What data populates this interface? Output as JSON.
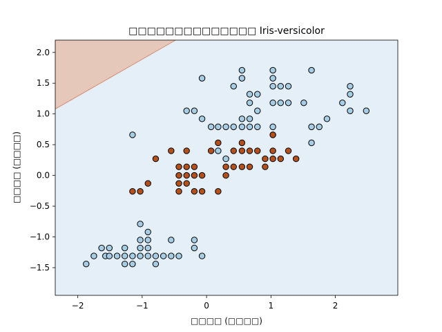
{
  "chart_data": {
    "type": "scatter",
    "title": "□□□□□□□□□□□□□□ Iris-versicolor",
    "xlabel": "□□□□ (□□□□)",
    "ylabel": "□□□□ (□□□□)",
    "xlim": [
      -2.35,
      2.97
    ],
    "ylim": [
      -1.95,
      2.2
    ],
    "xticks": [
      -2,
      -1,
      0,
      1,
      2
    ],
    "yticks": [
      -1.5,
      -1.0,
      -0.5,
      0.0,
      0.5,
      1.0,
      1.5,
      2.0
    ],
    "xtick_labels": [
      "−2",
      "−1",
      "0",
      "1",
      "2"
    ],
    "ytick_labels": [
      "−1.5",
      "−1.0",
      "−0.5",
      "0.0",
      "0.5",
      "1.0",
      "1.5",
      "2.0"
    ],
    "grid": false,
    "decision_region": {
      "boundary_line": [
        [
          -2.35,
          1.08
        ],
        [
          -0.48,
          2.2
        ]
      ],
      "upper_region_color": "#e6c8ba",
      "lower_region_color": "#e4eff7",
      "boundary_color": "#d4896e"
    },
    "series": [
      {
        "color": "#a6cde3",
        "points": [
          [
            -1.87,
            -1.44
          ],
          [
            -1.75,
            -1.31
          ],
          [
            -1.63,
            -1.18
          ],
          [
            -1.57,
            -1.31
          ],
          [
            -1.51,
            -1.18
          ],
          [
            -1.51,
            -1.31
          ],
          [
            -1.39,
            -1.31
          ],
          [
            -1.27,
            -1.44
          ],
          [
            -1.27,
            -1.31
          ],
          [
            -1.27,
            -1.18
          ],
          [
            -1.15,
            -1.44
          ],
          [
            -1.15,
            -1.31
          ],
          [
            -1.03,
            -1.31
          ],
          [
            -1.03,
            -1.18
          ],
          [
            -1.03,
            -1.05
          ],
          [
            -1.03,
            -0.79
          ],
          [
            -0.91,
            -1.31
          ],
          [
            -0.91,
            -1.18
          ],
          [
            -0.91,
            -1.05
          ],
          [
            -0.91,
            -0.92
          ],
          [
            -0.79,
            -1.31
          ],
          [
            -0.79,
            -1.44
          ],
          [
            -0.67,
            -1.31
          ],
          [
            -0.55,
            -1.31
          ],
          [
            -0.55,
            -1.05
          ],
          [
            -0.43,
            -1.31
          ],
          [
            -0.19,
            -1.18
          ],
          [
            -0.19,
            -1.05
          ],
          [
            -0.07,
            -1.31
          ],
          [
            -1.15,
            0.66
          ],
          [
            -0.31,
            1.05
          ],
          [
            -0.19,
            1.05
          ],
          [
            -0.07,
            0.92
          ],
          [
            -0.07,
            1.58
          ],
          [
            0.07,
            0.79
          ],
          [
            0.18,
            0.79
          ],
          [
            0.18,
            0.4
          ],
          [
            0.3,
            0.79
          ],
          [
            0.3,
            0.27
          ],
          [
            0.42,
            0.79
          ],
          [
            0.42,
            1.45
          ],
          [
            0.55,
            0.79
          ],
          [
            0.55,
            0.92
          ],
          [
            0.55,
            1.58
          ],
          [
            0.55,
            1.71
          ],
          [
            0.67,
            0.79
          ],
          [
            0.67,
            0.92
          ],
          [
            0.67,
            1.18
          ],
          [
            0.67,
            1.32
          ],
          [
            0.79,
            0.79
          ],
          [
            0.79,
            1.05
          ],
          [
            0.79,
            1.32
          ],
          [
            1.03,
            0.66
          ],
          [
            1.03,
            0.79
          ],
          [
            1.03,
            1.18
          ],
          [
            1.03,
            1.45
          ],
          [
            1.03,
            1.58
          ],
          [
            1.03,
            1.71
          ],
          [
            1.15,
            1.18
          ],
          [
            1.15,
            1.45
          ],
          [
            1.27,
            1.18
          ],
          [
            1.27,
            1.45
          ],
          [
            1.51,
            1.18
          ],
          [
            1.63,
            0.53
          ],
          [
            1.63,
            0.79
          ],
          [
            1.63,
            1.71
          ],
          [
            1.75,
            0.79
          ],
          [
            1.87,
            0.92
          ],
          [
            2.11,
            1.18
          ],
          [
            2.23,
            1.05
          ],
          [
            2.23,
            1.32
          ],
          [
            2.23,
            1.45
          ],
          [
            2.48,
            1.05
          ]
        ]
      },
      {
        "color": "#b3501c",
        "points": [
          [
            -1.15,
            -0.26
          ],
          [
            -1.03,
            -0.26
          ],
          [
            -0.91,
            -0.13
          ],
          [
            -0.79,
            0.27
          ],
          [
            -0.55,
            0.4
          ],
          [
            -0.43,
            0.14
          ],
          [
            -0.43,
            0.0
          ],
          [
            -0.43,
            -0.13
          ],
          [
            -0.43,
            -0.26
          ],
          [
            -0.31,
            0.4
          ],
          [
            -0.31,
            0.14
          ],
          [
            -0.31,
            -0.13
          ],
          [
            -0.31,
            0.0
          ],
          [
            -0.19,
            0.14
          ],
          [
            -0.19,
            0.0
          ],
          [
            -0.19,
            -0.26
          ],
          [
            -0.07,
            0.0
          ],
          [
            -0.07,
            -0.26
          ],
          [
            0.07,
            0.4
          ],
          [
            0.18,
            0.53
          ],
          [
            0.18,
            -0.26
          ],
          [
            0.3,
            0.14
          ],
          [
            0.3,
            0.0
          ],
          [
            0.42,
            0.4
          ],
          [
            0.42,
            0.14
          ],
          [
            0.55,
            0.53
          ],
          [
            0.55,
            0.4
          ],
          [
            0.55,
            0.14
          ],
          [
            0.67,
            0.4
          ],
          [
            0.67,
            0.14
          ],
          [
            0.79,
            0.4
          ],
          [
            0.91,
            0.27
          ],
          [
            0.91,
            0.14
          ],
          [
            1.03,
            0.66
          ],
          [
            1.03,
            0.4
          ],
          [
            1.03,
            0.27
          ],
          [
            1.15,
            0.27
          ],
          [
            1.27,
            0.4
          ],
          [
            1.39,
            0.27
          ]
        ]
      }
    ]
  }
}
